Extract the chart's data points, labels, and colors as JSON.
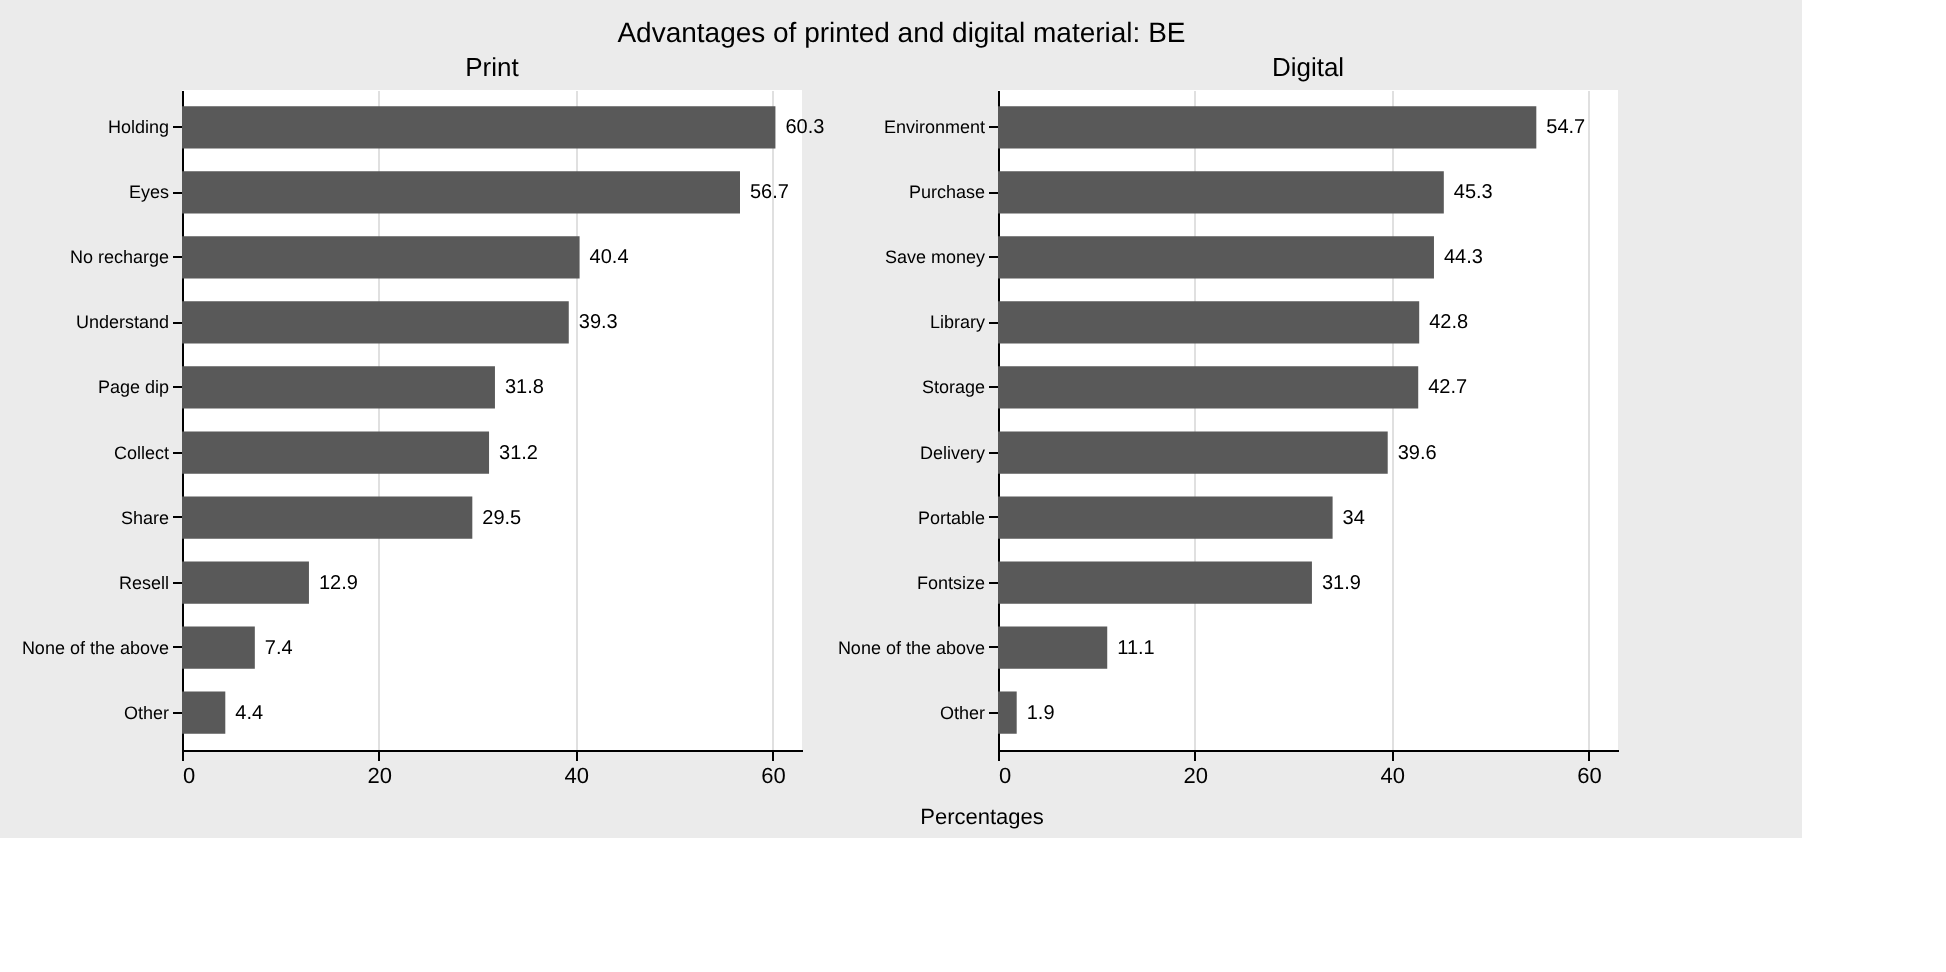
{
  "chart_data": [
    {
      "type": "bar",
      "orientation": "horizontal",
      "title": "Print",
      "annotations": [
        "Advantages of printed and digital material: BE"
      ],
      "xlabel": "Percentages",
      "categories": [
        "Holding",
        "Eyes",
        "No recharge",
        "Understand",
        "Page dip",
        "Collect",
        "Share",
        "Resell",
        "None of the above",
        "Other"
      ],
      "values": [
        60.3,
        56.7,
        40.4,
        39.3,
        31.8,
        31.2,
        29.5,
        12.9,
        7.4,
        4.4
      ],
      "color": "#595959",
      "xlim": [
        0,
        63
      ],
      "xticks": [
        0,
        20,
        40,
        60
      ],
      "grid": "x",
      "data_labels": true
    },
    {
      "type": "bar",
      "orientation": "horizontal",
      "title": "Digital",
      "categories": [
        "Environment",
        "Purchase",
        "Save money",
        "Library",
        "Storage",
        "Delivery",
        "Portable",
        "Fontsize",
        "None of the above",
        "Other"
      ],
      "values": [
        54.7,
        45.3,
        44.3,
        42.8,
        42.7,
        39.6,
        34,
        31.9,
        11.1,
        1.9
      ],
      "color": "#595959",
      "xlim": [
        0,
        63
      ],
      "xticks": [
        0,
        20,
        40,
        60
      ],
      "grid": "x",
      "data_labels": true
    }
  ]
}
